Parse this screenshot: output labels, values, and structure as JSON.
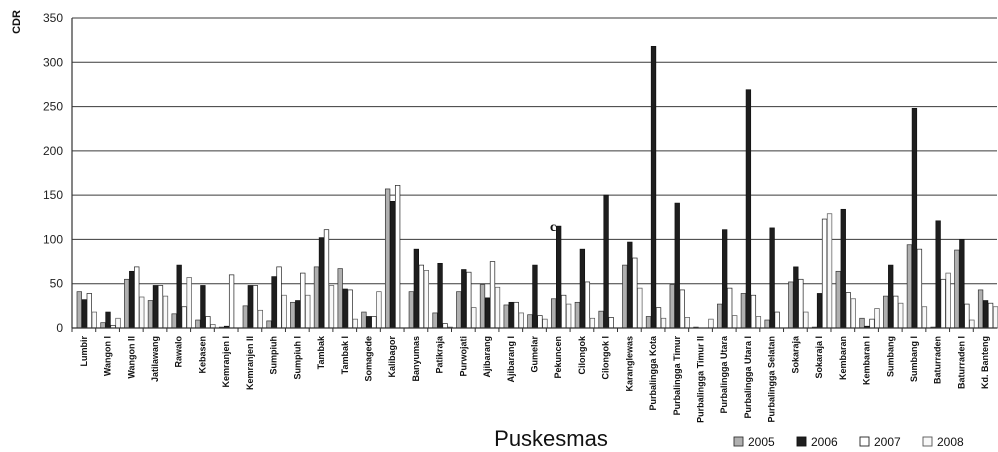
{
  "chart_data": {
    "type": "bar",
    "title": "",
    "xlabel": "Puskesmas",
    "ylabel": "CDR",
    "ylim": [
      0,
      350
    ],
    "yticks": [
      0,
      50,
      100,
      150,
      200,
      250,
      300,
      350
    ],
    "grid": true,
    "legend_position": "bottom-right",
    "annotation": "c",
    "categories": [
      "Lumbir",
      "Wangon I",
      "Wangon II",
      "Jatilawang",
      "Rawalo",
      "Kebasen",
      "Kemranjen I",
      "Kemranjen II",
      "Sumpiuh",
      "Sumpiuh I",
      "Tambak",
      "Tambak I",
      "Somagede",
      "Kalibagor",
      "Banyumas",
      "Patikraja",
      "Purwojati",
      "Ajibarang",
      "Ajibarang I",
      "Gumelar",
      "Pekuncen",
      "Cilongok",
      "Cilongok I",
      "Karanglewas",
      "Purbalingga Kota",
      "Purbalingga Timur",
      "Purbalingga Timur II",
      "Purbalingga Utara",
      "Purbalingga Utara I",
      "Purbalingga Selatan",
      "Sokaraja",
      "Sokaraja I",
      "Kembaran",
      "Kembaran I",
      "Sumbang",
      "Sumbang I",
      "Baturraden",
      "Baturraden I",
      "Kd. Banteng"
    ],
    "series": [
      {
        "name": "2005",
        "values": [
          41,
          6,
          55,
          31,
          16,
          9,
          1,
          25,
          8,
          29,
          69,
          67,
          18,
          157,
          41,
          17,
          41,
          49,
          26,
          15,
          33,
          29,
          19,
          71,
          13,
          49,
          1,
          27,
          39,
          9,
          52,
          1,
          64,
          11,
          36,
          94,
          1,
          88,
          43
        ]
      },
      {
        "name": "2006",
        "values": [
          32,
          18,
          64,
          48,
          71,
          48,
          2,
          48,
          58,
          31,
          102,
          44,
          13,
          143,
          89,
          73,
          66,
          34,
          29,
          71,
          115,
          89,
          150,
          97,
          318,
          141,
          0,
          111,
          269,
          113,
          69,
          39,
          134,
          2,
          71,
          248,
          121,
          100,
          31
        ]
      },
      {
        "name": "2007",
        "values": [
          39,
          3,
          69,
          48,
          24,
          13,
          60,
          48,
          69,
          62,
          111,
          43,
          13,
          161,
          71,
          5,
          63,
          75,
          29,
          14,
          37,
          52,
          12,
          79,
          23,
          43,
          0,
          45,
          37,
          18,
          55,
          123,
          40,
          10,
          36,
          89,
          55,
          27,
          28
        ]
      },
      {
        "name": "2008",
        "values": [
          18,
          11,
          35,
          36,
          57,
          4,
          0,
          20,
          37,
          37,
          48,
          10,
          41,
          0,
          65,
          1,
          23,
          46,
          17,
          10,
          27,
          11,
          0,
          45,
          11,
          12,
          10,
          14,
          13,
          0,
          18,
          129,
          33,
          22,
          28,
          24,
          62,
          9,
          24
        ]
      }
    ],
    "colors": {
      "2005": "#b0b0b0",
      "2006": "#1e1e1e",
      "2007": "#ffffff",
      "2008": "#f8f8f8"
    }
  }
}
